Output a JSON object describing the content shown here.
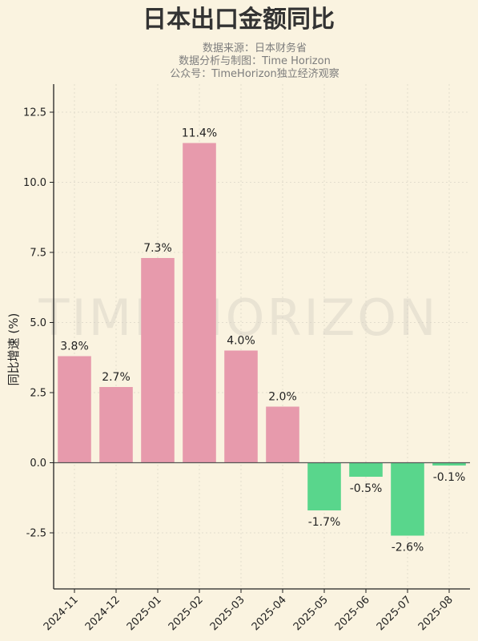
{
  "chart_data": {
    "type": "bar",
    "title": "日本出口金额同比",
    "subtitle_lines": [
      "数据来源：日本财务省",
      "数据分析与制图：Time Horizon",
      "公众号：TimeHorizon独立经济观察"
    ],
    "watermark": "TIME HORIZON",
    "xlabel": "",
    "ylabel": "同比增速 (%)",
    "ylim": [
      -4.5,
      13.5
    ],
    "yticks": [
      -2.5,
      0.0,
      2.5,
      5.0,
      7.5,
      10.0,
      12.5
    ],
    "ytick_labels": [
      "-2.5",
      "0.0",
      "2.5",
      "5.0",
      "7.5",
      "10.0",
      "12.5"
    ],
    "categories": [
      "2024-11",
      "2024-12",
      "2025-01",
      "2025-02",
      "2025-03",
      "2025-04",
      "2025-05",
      "2025-06",
      "2025-07",
      "2025-08"
    ],
    "values": [
      3.8,
      2.7,
      7.3,
      11.4,
      4.0,
      2.0,
      -1.7,
      -0.5,
      -2.6,
      -0.1
    ],
    "value_labels": [
      "3.8%",
      "2.7%",
      "7.3%",
      "11.4%",
      "4.0%",
      "2.0%",
      "-1.7%",
      "-0.5%",
      "-2.6%",
      "-0.1%"
    ],
    "grid": true,
    "colors": {
      "positive": "#e79aac",
      "negative": "#59d68c",
      "axis": "#222222",
      "background": "#faf3e0"
    }
  }
}
